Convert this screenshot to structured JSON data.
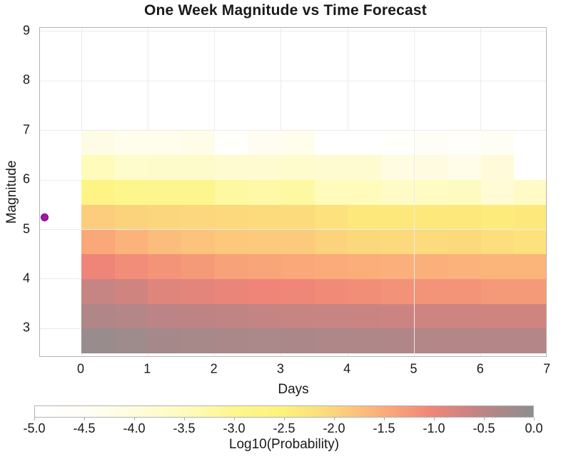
{
  "chart_data": {
    "type": "heatmap",
    "title": "One Week Magnitude vs Time Forecast",
    "xlabel": "Days",
    "ylabel": "Magnitude",
    "colorbar_label": "Log10(Probability)",
    "xlim": [
      -0.62,
      7.0
    ],
    "ylim": [
      2.41,
      9.07
    ],
    "grid": true,
    "x_ticks": [
      0,
      1,
      2,
      3,
      4,
      5,
      6,
      7
    ],
    "x_tick_labels": [
      "0",
      "1",
      "2",
      "3",
      "4",
      "5",
      "6",
      "7"
    ],
    "y_ticks": [
      3,
      4,
      5,
      6,
      7,
      8,
      9
    ],
    "y_tick_labels": [
      "3",
      "4",
      "5",
      "6",
      "7",
      "8",
      "9"
    ],
    "day_bin_width": 0.5,
    "day_start": 0,
    "mag_bins": [
      [
        2.5,
        3.0
      ],
      [
        3.0,
        3.5
      ],
      [
        3.5,
        4.0
      ],
      [
        4.0,
        4.5
      ],
      [
        4.5,
        5.0
      ],
      [
        5.0,
        5.5
      ],
      [
        5.5,
        6.0
      ],
      [
        6.0,
        6.5
      ],
      [
        6.5,
        7.0
      ]
    ],
    "rows_order": "magnitude ascending, 14 half-day columns from day 0 to 7",
    "values_log10_probability": [
      [
        -0.12,
        -0.17,
        -0.25,
        -0.27,
        -0.3,
        -0.32,
        -0.33,
        -0.35,
        -0.37,
        -0.38,
        -0.4,
        -0.4,
        -0.42,
        -0.42
      ],
      [
        -0.38,
        -0.42,
        -0.5,
        -0.52,
        -0.55,
        -0.58,
        -0.6,
        -0.62,
        -0.63,
        -0.66,
        -0.68,
        -0.68,
        -0.7,
        -0.7
      ],
      [
        -0.6,
        -0.7,
        -0.85,
        -0.9,
        -0.95,
        -1.0,
        -1.02,
        -1.08,
        -1.12,
        -1.17,
        -1.2,
        -1.2,
        -1.28,
        -1.28
      ],
      [
        -1.0,
        -1.1,
        -1.2,
        -1.28,
        -1.38,
        -1.42,
        -1.45,
        -1.5,
        -1.52,
        -1.55,
        -1.55,
        -1.6,
        -1.62,
        -1.62
      ],
      [
        -1.45,
        -1.6,
        -1.72,
        -1.78,
        -1.85,
        -1.87,
        -1.87,
        -1.98,
        -2.05,
        -2.07,
        -2.1,
        -2.07,
        -2.15,
        -2.2
      ],
      [
        -1.9,
        -1.98,
        -2.02,
        -2.04,
        -2.07,
        -2.1,
        -2.1,
        -2.2,
        -2.35,
        -2.35,
        -2.33,
        -2.33,
        -2.4,
        -2.35
      ],
      [
        -2.78,
        -2.95,
        -3.0,
        -3.0,
        -3.2,
        -3.25,
        -3.2,
        -3.45,
        -3.45,
        -3.6,
        -3.55,
        -3.5,
        -3.85,
        -3.6
      ],
      [
        -3.45,
        -3.7,
        -3.67,
        -3.68,
        -3.8,
        -3.8,
        -3.72,
        -3.8,
        -3.78,
        -4.1,
        -4.08,
        -4.2,
        -3.95,
        -5.0
      ],
      [
        -4.15,
        -4.3,
        -4.28,
        -4.2,
        -4.85,
        -4.4,
        -4.3,
        -5.0,
        -5.0,
        -4.85,
        -4.5,
        -4.7,
        -4.45,
        -5.0
      ]
    ],
    "colorbar_ticks": [
      -5.0,
      -4.5,
      -4.0,
      -3.5,
      -3.0,
      -2.5,
      -2.0,
      -1.5,
      -1.0,
      -0.5,
      0.0
    ],
    "colorbar_tick_labels": [
      "-5.0",
      "-4.5",
      "-4.0",
      "-3.5",
      "-3.0",
      "-2.5",
      "-2.0",
      "-1.5",
      "-1.0",
      "-0.5",
      "0.0"
    ],
    "colormap_stops": [
      {
        "value": -5.0,
        "color": "#ffffff"
      },
      {
        "value": -4.5,
        "color": "#fffef6"
      },
      {
        "value": -4.0,
        "color": "#fffbdd"
      },
      {
        "value": -3.5,
        "color": "#fefbc0"
      },
      {
        "value": -3.0,
        "color": "#fdf68e"
      },
      {
        "value": -2.5,
        "color": "#fdf27a"
      },
      {
        "value": -2.0,
        "color": "#fcd57d"
      },
      {
        "value": -1.5,
        "color": "#fbab7a"
      },
      {
        "value": -1.0,
        "color": "#ee8578"
      },
      {
        "value": -0.5,
        "color": "#bc8486"
      },
      {
        "value": 0.0,
        "color": "#8e8e8e"
      }
    ],
    "mainshock": {
      "day": -0.55,
      "magnitude": 5.25,
      "marker": "circle",
      "color": "#a516aa"
    }
  },
  "colors": {
    "spine": "#b3b3b3",
    "grid": "#ebebeb",
    "text": "#1a1a1a",
    "background": "#ffffff"
  }
}
